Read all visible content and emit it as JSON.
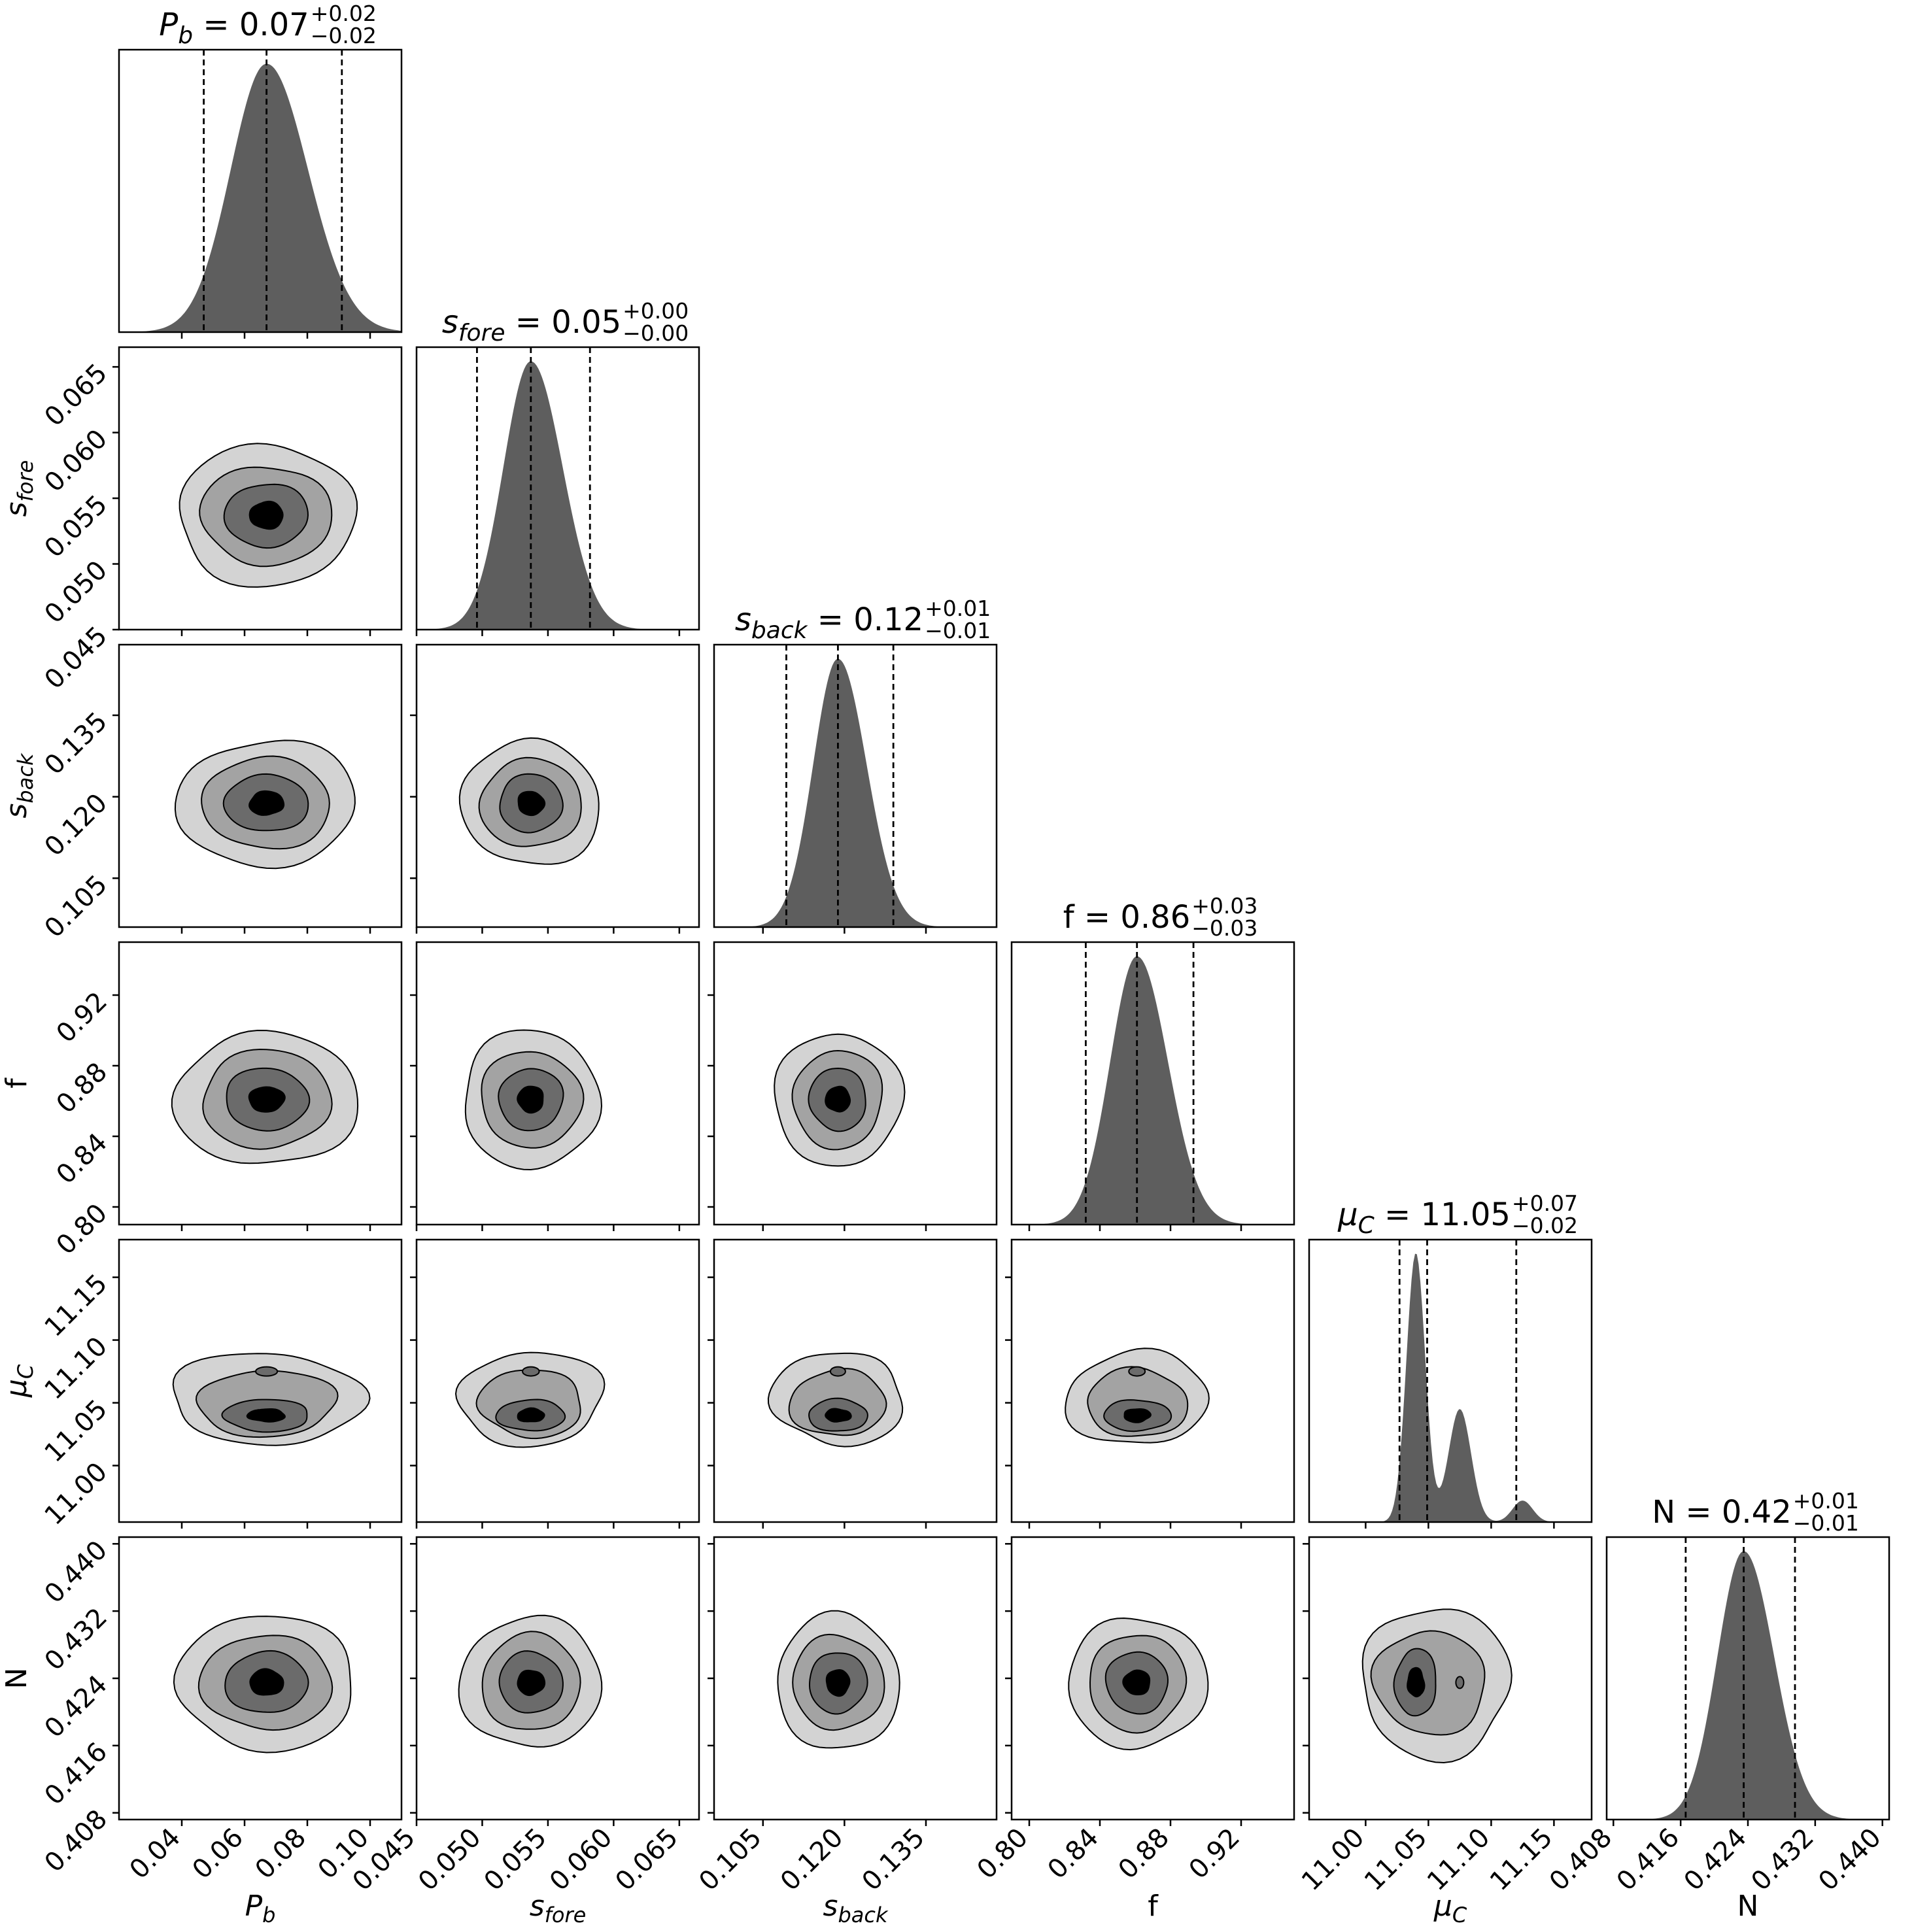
{
  "chart_data": {
    "type": "corner",
    "parameters": [
      {
        "key": "P_b",
        "label": "P",
        "label_sub": "b",
        "italic": true,
        "title_value": "0.07",
        "title_plus": "+0.02",
        "title_minus": "−0.02",
        "median": 0.067,
        "q16": 0.047,
        "q84": 0.091,
        "range": [
          0.02,
          0.11
        ],
        "ticks": [
          0.04,
          0.06,
          0.08,
          0.1
        ],
        "tick_labels": [
          "0.04",
          "0.06",
          "0.08",
          "0.10"
        ],
        "sigma": 0.012
      },
      {
        "key": "s_fore",
        "label": "s",
        "label_sub": "fore",
        "italic": true,
        "title_value": "0.05",
        "title_plus": "+0.00",
        "title_minus": "−0.00",
        "median": 0.0537,
        "q16": 0.0496,
        "q84": 0.0582,
        "range": [
          0.045,
          0.0665
        ],
        "ticks": [
          0.045,
          0.05,
          0.055,
          0.06,
          0.065
        ],
        "tick_labels": [
          "0.045",
          "0.050",
          "0.055",
          "0.060",
          "0.065"
        ],
        "sigma": 0.0022
      },
      {
        "key": "s_back",
        "label": "s",
        "label_sub": "back",
        "italic": true,
        "title_value": "0.12",
        "title_plus": "+0.01",
        "title_minus": "−0.01",
        "median": 0.1188,
        "q16": 0.1093,
        "q84": 0.129,
        "range": [
          0.096,
          0.148
        ],
        "ticks": [
          0.105,
          0.12,
          0.135
        ],
        "tick_labels": [
          "0.105",
          "0.120",
          "0.135"
        ],
        "sigma": 0.0048
      },
      {
        "key": "f",
        "label": "f",
        "label_sub": "",
        "italic": false,
        "title_value": "0.86",
        "title_plus": "+0.03",
        "title_minus": "−0.03",
        "median": 0.861,
        "q16": 0.832,
        "q84": 0.893,
        "range": [
          0.79,
          0.95
        ],
        "ticks": [
          0.8,
          0.84,
          0.88,
          0.92
        ],
        "tick_labels": [
          "0.80",
          "0.84",
          "0.88",
          "0.92"
        ],
        "sigma": 0.016
      },
      {
        "key": "mu_C",
        "label": "μ",
        "label_sub": "C",
        "italic": true,
        "title_value": "11.05",
        "title_plus": "+0.07",
        "title_minus": "−0.02",
        "median": 11.049,
        "q16": 11.027,
        "q84": 11.12,
        "range": [
          10.955,
          11.18
        ],
        "ticks": [
          11.0,
          11.05,
          11.1,
          11.15
        ],
        "tick_labels": [
          "11.00",
          "11.05",
          "11.10",
          "11.15"
        ],
        "sigma": 0.008
      },
      {
        "key": "N",
        "label": "N",
        "label_sub": "",
        "italic": false,
        "title_value": "0.42",
        "title_plus": "+0.01",
        "title_minus": "−0.01",
        "median": 0.4235,
        "q16": 0.4166,
        "q84": 0.4296,
        "range": [
          0.4072,
          0.4408
        ],
        "ticks": [
          0.408,
          0.416,
          0.424,
          0.432,
          0.44
        ],
        "tick_labels": [
          "0.408",
          "0.416",
          "0.424",
          "0.432",
          "0.440"
        ],
        "sigma": 0.0033
      }
    ],
    "contour_levels": 4,
    "contour_fill_colors": [
      "#d3d3d3",
      "#a3a3a3",
      "#6b6b6b",
      "#000000"
    ],
    "histogram_color": "#5e5e5e",
    "grid": false,
    "legend": "none"
  }
}
